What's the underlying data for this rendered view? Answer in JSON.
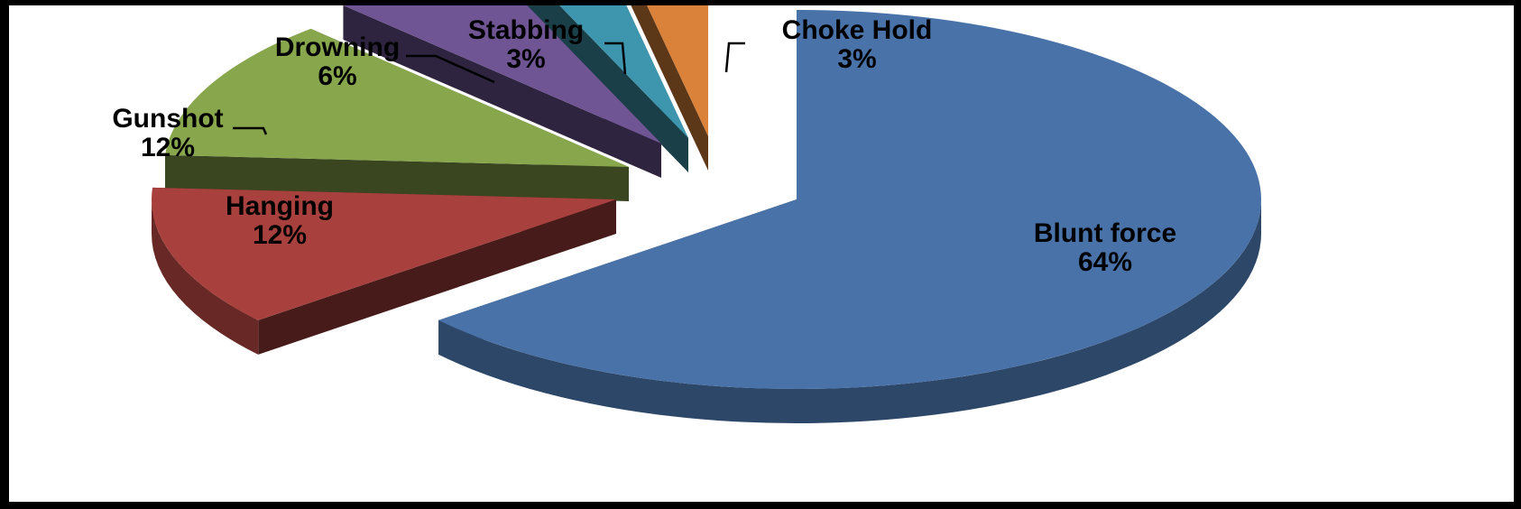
{
  "chart_data": {
    "type": "pie",
    "style": "3d-exploded",
    "slices": [
      {
        "label": "Blunt force",
        "percent_label": "64%",
        "value": 64,
        "color": "#4872A8"
      },
      {
        "label": "Hanging",
        "percent_label": "12%",
        "value": 12,
        "color": "#A8413E"
      },
      {
        "label": "Gunshot",
        "percent_label": "12%",
        "value": 12,
        "color": "#88A64B"
      },
      {
        "label": "Drowning",
        "percent_label": "6%",
        "value": 6,
        "color": "#705595"
      },
      {
        "label": "Stabbing",
        "percent_label": "3%",
        "value": 3,
        "color": "#3D96AE"
      },
      {
        "label": "Choke Hold",
        "percent_label": "3%",
        "value": 3,
        "color": "#DA8239"
      }
    ],
    "legend": "none"
  }
}
